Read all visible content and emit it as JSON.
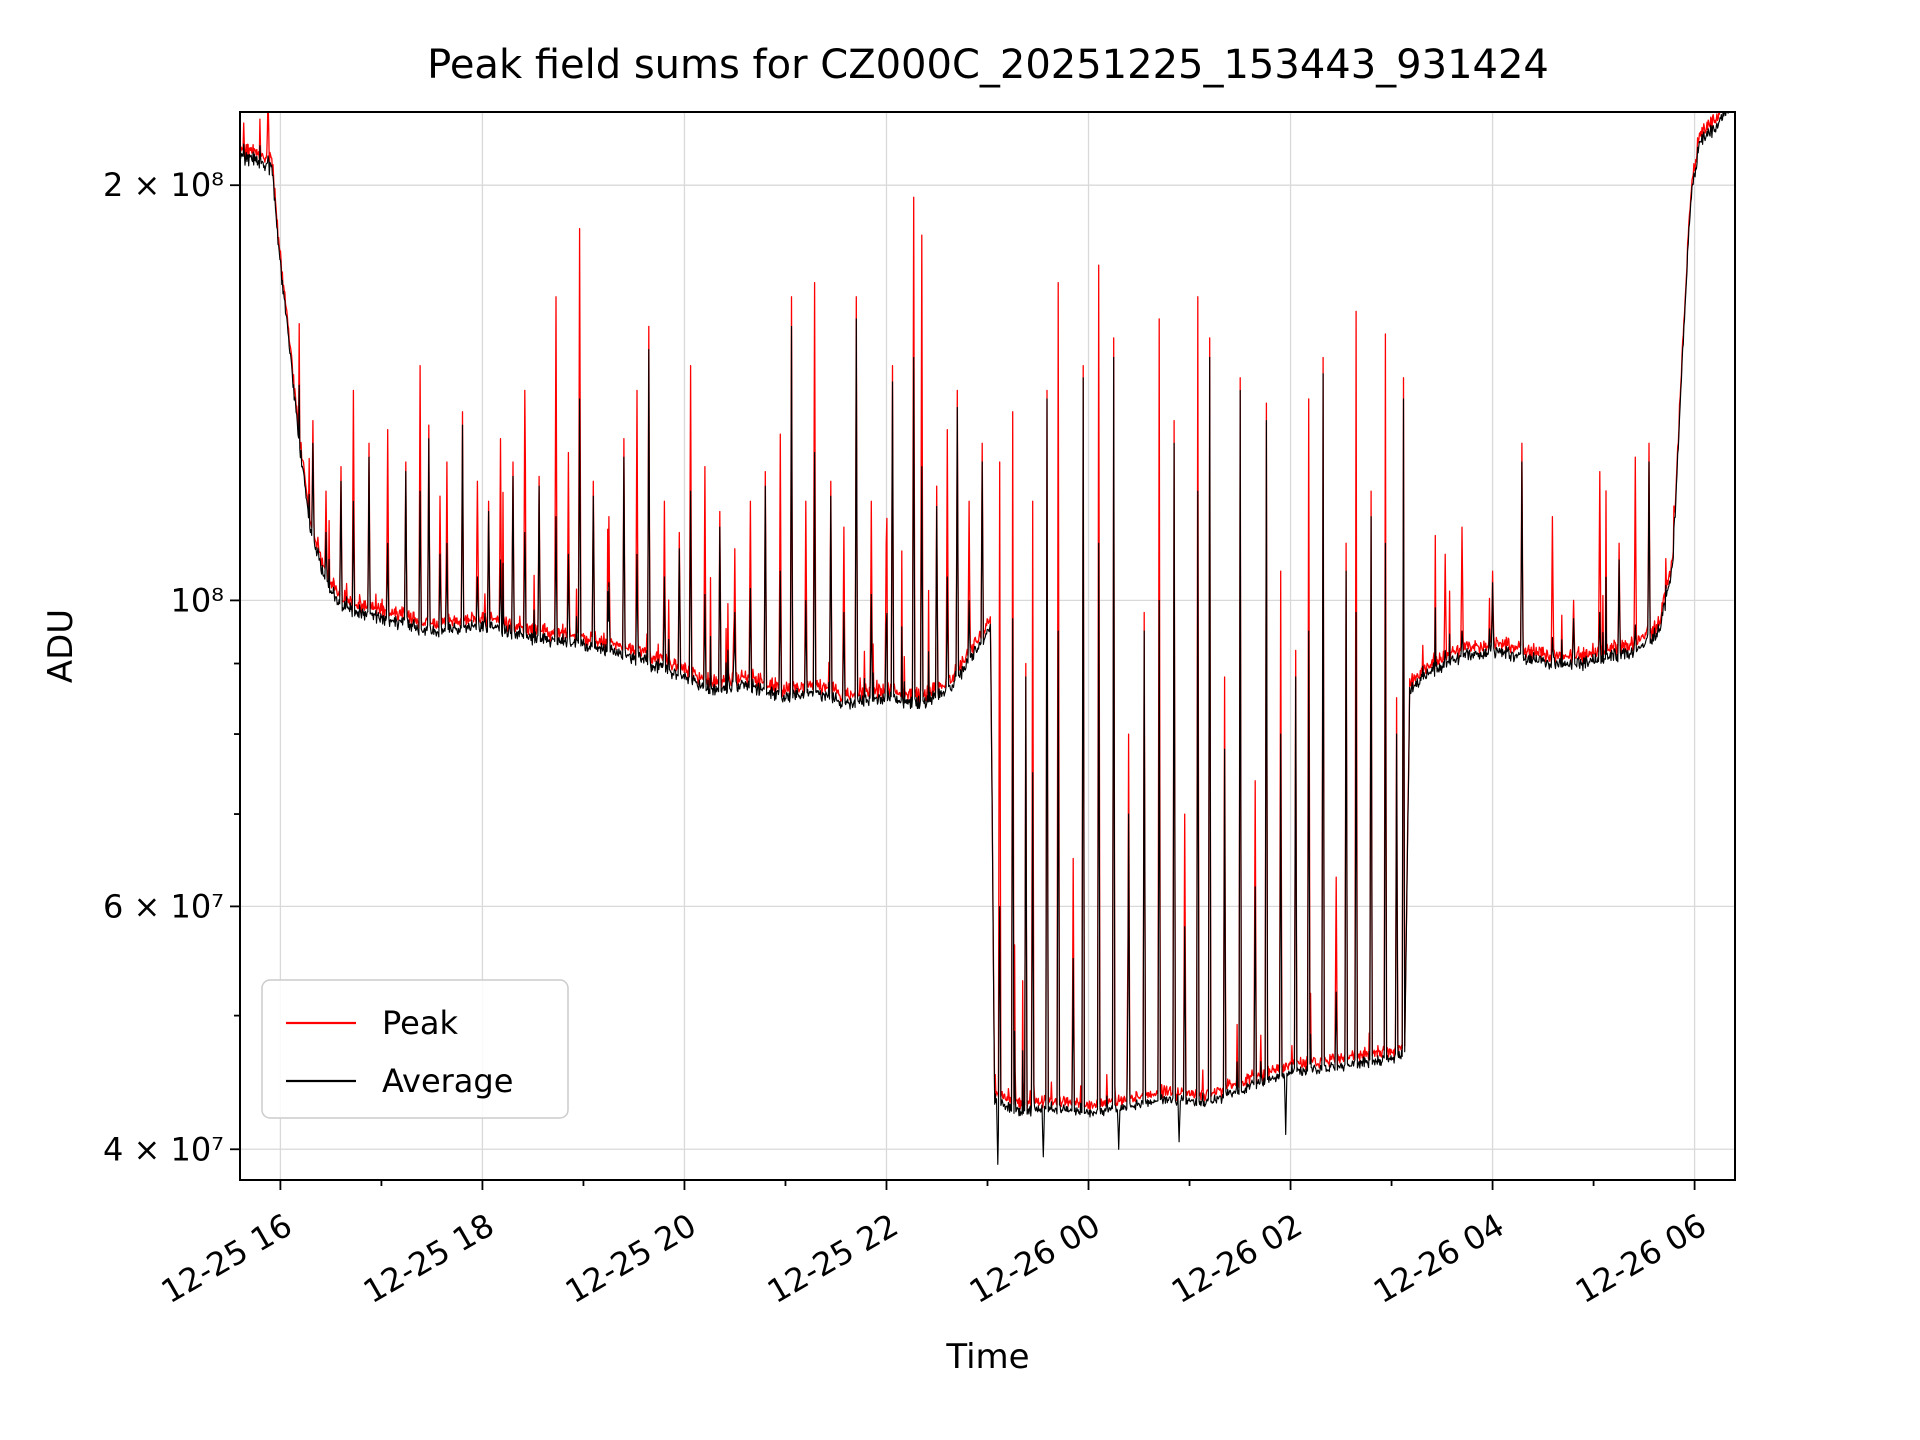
{
  "chart_data": {
    "type": "line",
    "title": "Peak field sums for CZ000C_20251225_153443_931424",
    "xlabel": "Time",
    "ylabel": "ADU",
    "yscale": "log",
    "grid": true,
    "xlim": [
      15.6,
      30.4
    ],
    "ylim": [
      38000000,
      226000000
    ],
    "x_unit": "hours (day 12-25 = hours 0-24, day 12-26 continues 24+)",
    "x_ticks": [
      {
        "t": 16,
        "label": "12-25 16"
      },
      {
        "t": 18,
        "label": "12-25 18"
      },
      {
        "t": 20,
        "label": "12-25 20"
      },
      {
        "t": 22,
        "label": "12-25 22"
      },
      {
        "t": 24,
        "label": "12-26 00"
      },
      {
        "t": 26,
        "label": "12-26 02"
      },
      {
        "t": 28,
        "label": "12-26 04"
      },
      {
        "t": 30,
        "label": "12-26 06"
      }
    ],
    "x_minor_ticks": [
      17,
      19,
      21,
      23,
      25,
      27,
      29
    ],
    "y_ticks": [
      {
        "v": 200000000,
        "label": "2 × 10⁸"
      },
      {
        "v": 100000000,
        "label": "10⁸"
      },
      {
        "v": 60000000,
        "label": "6 × 10⁷"
      },
      {
        "v": 40000000,
        "label": "4 × 10⁷"
      }
    ],
    "y_minor_ticks": [
      50000000,
      70000000,
      80000000,
      90000000
    ],
    "legend": {
      "position": "lower left",
      "entries": [
        {
          "label": "Peak",
          "color": "#ff0000"
        },
        {
          "label": "Average",
          "color": "#000000"
        }
      ]
    },
    "colors": {
      "peak": "#ff0000",
      "average": "#000000"
    },
    "series_model": {
      "units": "values in millions of ADU; times in hours",
      "baseline_avg": [
        [
          15.6,
          210
        ],
        [
          15.8,
          208
        ],
        [
          15.92,
          205
        ],
        [
          16.0,
          175
        ],
        [
          16.1,
          150
        ],
        [
          16.2,
          128
        ],
        [
          16.3,
          112
        ],
        [
          16.45,
          103
        ],
        [
          16.6,
          99
        ],
        [
          17.0,
          97
        ],
        [
          17.5,
          95
        ],
        [
          18.0,
          96
        ],
        [
          18.5,
          94
        ],
        [
          19.0,
          93
        ],
        [
          19.5,
          91
        ],
        [
          20.0,
          88
        ],
        [
          20.3,
          86
        ],
        [
          20.6,
          87
        ],
        [
          21.0,
          85
        ],
        [
          21.3,
          86
        ],
        [
          21.6,
          84
        ],
        [
          22.0,
          85
        ],
        [
          22.3,
          84
        ],
        [
          22.6,
          86
        ],
        [
          22.9,
          92
        ],
        [
          23.03,
          96
        ],
        [
          23.07,
          43.5
        ],
        [
          23.3,
          42.5
        ],
        [
          23.6,
          42.8
        ],
        [
          24.0,
          42.5
        ],
        [
          24.4,
          43.0
        ],
        [
          24.8,
          43.5
        ],
        [
          25.2,
          43.2
        ],
        [
          25.6,
          44.5
        ],
        [
          26.0,
          45.5
        ],
        [
          26.4,
          45.8
        ],
        [
          26.7,
          46.2
        ],
        [
          27.0,
          46.5
        ],
        [
          27.13,
          47.0
        ],
        [
          27.18,
          86
        ],
        [
          27.4,
          89
        ],
        [
          27.7,
          91
        ],
        [
          28.0,
          92
        ],
        [
          28.3,
          91
        ],
        [
          28.6,
          90
        ],
        [
          28.9,
          90
        ],
        [
          29.2,
          91
        ],
        [
          29.45,
          92
        ],
        [
          29.65,
          95
        ],
        [
          29.78,
          105
        ],
        [
          29.88,
          150
        ],
        [
          29.96,
          195
        ],
        [
          30.05,
          215
        ],
        [
          30.2,
          220
        ],
        [
          30.4,
          232
        ]
      ],
      "spikes": [
        [
          15.88,
          232,
          210
        ],
        [
          16.32,
          135,
          130
        ],
        [
          16.45,
          120,
          112
        ],
        [
          16.6,
          125,
          122
        ],
        [
          16.72,
          142,
          118
        ],
        [
          16.88,
          130,
          127
        ],
        [
          17.06,
          133,
          110
        ],
        [
          17.24,
          126,
          124
        ],
        [
          17.38,
          148,
          120
        ],
        [
          17.47,
          134,
          131
        ],
        [
          17.58,
          119,
          108
        ],
        [
          17.65,
          126,
          110
        ],
        [
          17.8,
          137,
          134
        ],
        [
          17.95,
          122,
          104
        ],
        [
          18.06,
          118,
          116
        ],
        [
          18.18,
          131,
          107
        ],
        [
          18.3,
          126,
          123
        ],
        [
          18.42,
          142,
          112
        ],
        [
          18.56,
          123,
          121
        ],
        [
          18.73,
          166,
          115
        ],
        [
          18.85,
          128,
          108
        ],
        [
          18.96,
          186,
          140
        ],
        [
          19.1,
          122,
          119
        ],
        [
          19.25,
          115,
          103
        ],
        [
          19.4,
          131,
          127
        ],
        [
          19.53,
          142,
          108
        ],
        [
          19.65,
          158,
          152
        ],
        [
          19.8,
          118,
          104
        ],
        [
          19.95,
          112,
          109
        ],
        [
          20.06,
          148,
          120
        ],
        [
          20.2,
          125,
          101
        ],
        [
          20.35,
          116,
          113
        ],
        [
          20.5,
          109,
          98
        ],
        [
          20.65,
          118,
          102
        ],
        [
          20.8,
          124,
          121
        ],
        [
          20.95,
          132,
          105
        ],
        [
          21.06,
          166,
          158
        ],
        [
          21.2,
          118,
          100
        ],
        [
          21.29,
          170,
          128
        ],
        [
          21.45,
          122,
          119
        ],
        [
          21.58,
          113,
          98
        ],
        [
          21.7,
          166,
          160
        ],
        [
          21.85,
          118,
          101
        ],
        [
          22.0,
          110,
          96
        ],
        [
          22.06,
          148,
          144
        ],
        [
          22.27,
          196,
          150
        ],
        [
          22.35,
          184,
          125
        ],
        [
          22.5,
          121,
          117
        ],
        [
          22.6,
          133,
          104
        ],
        [
          22.7,
          142,
          138
        ],
        [
          22.82,
          118,
          100
        ],
        [
          22.95,
          130,
          126
        ],
        [
          23.12,
          126,
          60
        ],
        [
          23.25,
          137,
          97
        ],
        [
          23.38,
          90,
          88
        ],
        [
          23.45,
          118,
          75
        ],
        [
          23.59,
          142,
          140
        ],
        [
          23.7,
          170,
          95
        ],
        [
          23.85,
          65,
          55
        ],
        [
          23.95,
          148,
          145
        ],
        [
          24.1,
          175,
          110
        ],
        [
          24.25,
          155,
          150
        ],
        [
          24.4,
          80,
          70
        ],
        [
          24.55,
          98,
          95
        ],
        [
          24.7,
          160,
          100
        ],
        [
          24.85,
          135,
          130
        ],
        [
          24.95,
          70,
          58
        ],
        [
          25.08,
          166,
          120
        ],
        [
          25.2,
          155,
          150
        ],
        [
          25.35,
          88,
          78
        ],
        [
          25.5,
          145,
          142
        ],
        [
          25.65,
          74,
          62
        ],
        [
          25.76,
          139,
          135
        ],
        [
          25.9,
          105,
          80
        ],
        [
          26.05,
          92,
          88
        ],
        [
          26.18,
          140,
          95
        ],
        [
          26.32,
          150,
          146
        ],
        [
          26.45,
          63,
          52
        ],
        [
          26.55,
          110,
          105
        ],
        [
          26.65,
          162,
          98
        ],
        [
          26.8,
          120,
          115
        ],
        [
          26.94,
          156,
          110
        ],
        [
          27.05,
          85,
          80
        ],
        [
          27.12,
          145,
          140
        ],
        [
          27.53,
          108,
          92
        ],
        [
          27.7,
          113,
          95
        ],
        [
          28.0,
          105,
          103
        ],
        [
          28.29,
          130,
          126
        ],
        [
          28.59,
          115,
          94
        ],
        [
          28.8,
          100,
          97
        ],
        [
          29.06,
          124,
          98
        ],
        [
          29.25,
          110,
          107
        ],
        [
          29.41,
          127,
          96
        ],
        [
          29.55,
          130,
          126
        ],
        [
          30.32,
          235,
          231
        ]
      ],
      "dips_avg": [
        [
          23.1,
          39
        ],
        [
          23.55,
          39.5
        ],
        [
          24.3,
          40
        ],
        [
          24.9,
          40.5
        ],
        [
          25.95,
          41
        ]
      ],
      "noise": {
        "log_sigma_high": 0.0062,
        "log_sigma_low": 0.0045,
        "seed": 42
      }
    }
  }
}
